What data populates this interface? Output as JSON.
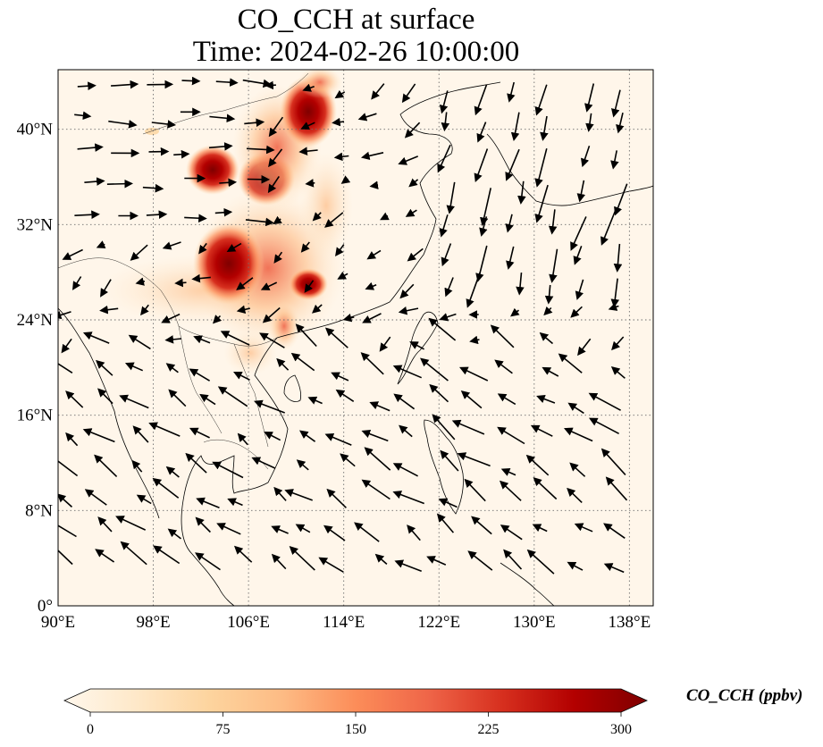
{
  "title": {
    "line1": "CO_CCH at surface",
    "line2": "Time: 2024-02-26 10:00:00"
  },
  "map": {
    "projection": "PlateCarree",
    "lon_range": [
      90,
      140
    ],
    "lat_range": [
      0,
      45
    ],
    "gridlines": "dotted",
    "lon_ticks": [
      {
        "value": 90,
        "label": "90°E"
      },
      {
        "value": 98,
        "label": "98°E"
      },
      {
        "value": 106,
        "label": "106°E"
      },
      {
        "value": 114,
        "label": "114°E"
      },
      {
        "value": 122,
        "label": "122°E"
      },
      {
        "value": 130,
        "label": "130°E"
      },
      {
        "value": 138,
        "label": "138°E"
      }
    ],
    "lat_ticks": [
      {
        "value": 0,
        "label": "0°"
      },
      {
        "value": 8,
        "label": "8°N"
      },
      {
        "value": 16,
        "label": "16°N"
      },
      {
        "value": 24,
        "label": "24°N"
      },
      {
        "value": 32,
        "label": "32°N"
      },
      {
        "value": 40,
        "label": "40°N"
      }
    ],
    "field": "CO_CCH",
    "wind_vectors": "black arrows"
  },
  "colorbar": {
    "cmap": "OrRd",
    "min": 0,
    "max": 300,
    "extend": "both",
    "ticks": [
      {
        "value": 0,
        "label": "0"
      },
      {
        "value": 75,
        "label": "75"
      },
      {
        "value": 150,
        "label": "150"
      },
      {
        "value": 225,
        "label": "225"
      },
      {
        "value": 300,
        "label": "300"
      }
    ],
    "label": "CO_CCH (ppbv)",
    "colors": [
      "#fff7ec",
      "#fee8c8",
      "#fdd49e",
      "#fdbb84",
      "#fc8d59",
      "#ef6548",
      "#d7301f",
      "#b30000",
      "#7f0000"
    ]
  }
}
